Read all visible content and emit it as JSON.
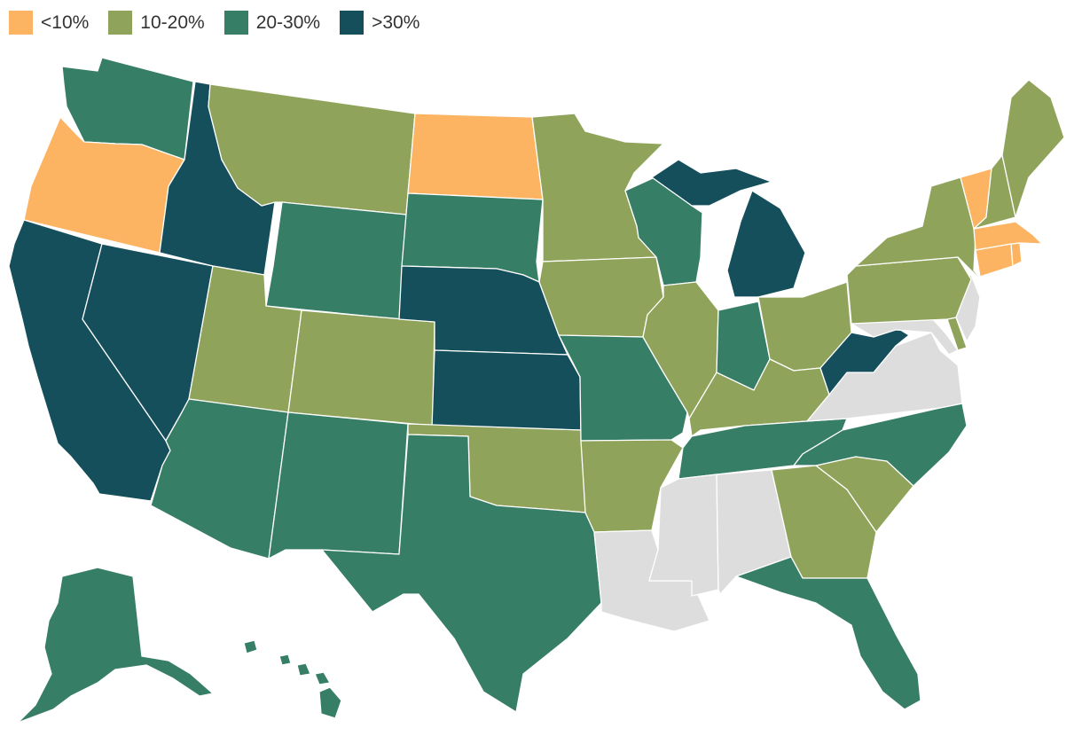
{
  "legend": [
    {
      "label": "<10%",
      "color": "#FDB462"
    },
    {
      "label": "10-20%",
      "color": "#8FA45A"
    },
    {
      "label": "20-30%",
      "color": "#377E66"
    },
    {
      "label": ">30%",
      "color": "#154F5C"
    }
  ],
  "no_data_color": "#DDDDDD",
  "states": {
    "WA": 2,
    "OR": 0,
    "CA": 3,
    "ID": 3,
    "NV": 3,
    "MT": 1,
    "WY": 2,
    "UT": 1,
    "AZ": 2,
    "CO": 1,
    "NM": 2,
    "ND": 0,
    "SD": 2,
    "NE": 3,
    "KS": 3,
    "OK": 1,
    "TX": 2,
    "MN": 1,
    "IA": 1,
    "MO": 2,
    "AR": 1,
    "LA": null,
    "WI": 2,
    "IL": 1,
    "MI": 3,
    "IN": 2,
    "OH": 1,
    "KY": 1,
    "TN": 2,
    "MS": null,
    "AL": null,
    "GA": 1,
    "FL": 2,
    "SC": 1,
    "NC": 2,
    "VA": null,
    "WV": 3,
    "MD": null,
    "DE": 1,
    "NJ": null,
    "PA": 1,
    "NY": 1,
    "CT": 0,
    "RI": 0,
    "MA": 0,
    "VT": 0,
    "NH": 1,
    "ME": 1,
    "AK": 2,
    "HI": 2
  }
}
